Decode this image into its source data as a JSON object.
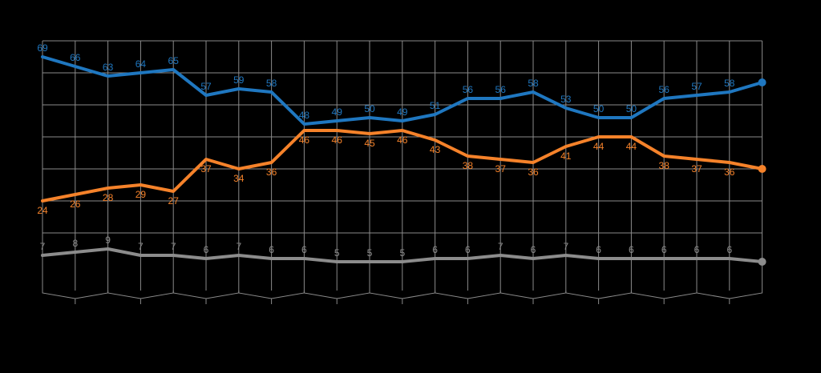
{
  "chart_data": {
    "type": "line",
    "title": "",
    "xlabel": "",
    "ylabel": "",
    "ylim": [
      -4,
      74
    ],
    "grid": true,
    "x": [
      1,
      2,
      3,
      4,
      5,
      6,
      7,
      8,
      9,
      10,
      11,
      12,
      13,
      14,
      15,
      16,
      17,
      18,
      19,
      20,
      21,
      22,
      23
    ],
    "series": [
      {
        "key": "blue",
        "color": "#1f77c0",
        "values": [
          69,
          66,
          63,
          64,
          65,
          57,
          59,
          58,
          48,
          49,
          50,
          49,
          51,
          56,
          56,
          58,
          53,
          50,
          50,
          56,
          57,
          58,
          61
        ],
        "labels": [
          "69",
          "66",
          "63",
          "64",
          "65",
          "57",
          "59",
          "58",
          "48",
          "49",
          "50",
          "49",
          "51",
          "56",
          "56",
          "58",
          "53",
          "50",
          "50",
          "56",
          "57",
          "58",
          ""
        ],
        "label_position": "above"
      },
      {
        "key": "orange",
        "color": "#f5822a",
        "values": [
          24,
          26,
          28,
          29,
          27,
          37,
          34,
          36,
          46,
          46,
          45,
          46,
          43,
          38,
          37,
          36,
          41,
          44,
          44,
          38,
          37,
          36,
          34
        ],
        "labels": [
          "24",
          "26",
          "28",
          "29",
          "27",
          "37",
          "34",
          "36",
          "46",
          "46",
          "45",
          "46",
          "43",
          "38",
          "37",
          "36",
          "41",
          "44",
          "44",
          "38",
          "37",
          "36",
          ""
        ],
        "label_position": "below"
      },
      {
        "key": "gray",
        "color": "#8c8c8c",
        "values": [
          7,
          8,
          9,
          7,
          7,
          6,
          7,
          6,
          6,
          5,
          5,
          5,
          6,
          6,
          7,
          6,
          7,
          6,
          6,
          6,
          6,
          6,
          5
        ],
        "labels": [
          "7",
          "8",
          "9",
          "7",
          "7",
          "6",
          "7",
          "6",
          "6",
          "5",
          "5",
          "5",
          "6",
          "6",
          "7",
          "6",
          "7",
          "6",
          "6",
          "6",
          "6",
          "6",
          ""
        ],
        "label_position": "above"
      }
    ]
  }
}
